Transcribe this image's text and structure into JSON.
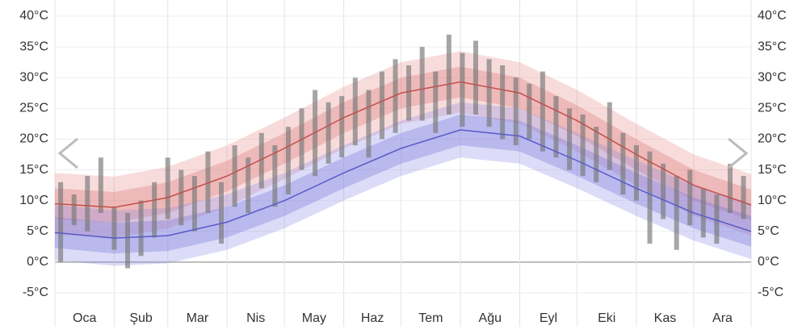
{
  "chart_data": {
    "type": "climate-band",
    "categories": [
      "Oca",
      "Şub",
      "Mar",
      "Nis",
      "May",
      "Haz",
      "Tem",
      "Ağu",
      "Eyl",
      "Eki",
      "Kas",
      "Ara"
    ],
    "xlim": [
      1,
      365
    ],
    "xticks": [
      1,
      32,
      60,
      91,
      121,
      152,
      182,
      213,
      244,
      274,
      305,
      335,
      365
    ],
    "ylim": [
      -5,
      40
    ],
    "yticks": [
      {
        "value": -5,
        "label": "-5°C"
      },
      {
        "value": 0,
        "label": "0°C"
      },
      {
        "value": 5,
        "label": "5°C"
      },
      {
        "value": 10,
        "label": "10°C"
      },
      {
        "value": 15,
        "label": "15°C"
      },
      {
        "value": 20,
        "label": "20°C"
      },
      {
        "value": 25,
        "label": "25°C"
      },
      {
        "value": 30,
        "label": "30°C"
      },
      {
        "value": 35,
        "label": "35°C"
      },
      {
        "value": 40,
        "label": "40°C"
      }
    ],
    "y2lim": [
      -5,
      40
    ],
    "y2ticks": [
      {
        "value": -5,
        "label": "-5°C"
      },
      {
        "value": 0,
        "label": "0°C"
      },
      {
        "value": 5,
        "label": "5°C"
      },
      {
        "value": 10,
        "label": "10°C"
      },
      {
        "value": 15,
        "label": "15°C"
      },
      {
        "value": 20,
        "label": "20°C"
      },
      {
        "value": 25,
        "label": "25°C"
      },
      {
        "value": 30,
        "label": "30°C"
      },
      {
        "value": 35,
        "label": "35°C"
      },
      {
        "value": 40,
        "label": "40°C"
      }
    ],
    "grid": true,
    "x": [
      1,
      32,
      60,
      91,
      121,
      152,
      182,
      213,
      244,
      274,
      305,
      335,
      365
    ],
    "bands": [
      {
        "color": "#e88a8a",
        "opacity": 0.3,
        "upper": [
          14.5,
          13.9,
          15.5,
          19,
          23.5,
          28.5,
          32.5,
          34.3,
          32.5,
          28,
          22.5,
          17.5,
          14.3
        ],
        "lower": [
          4.5,
          3.9,
          5.5,
          9,
          13.5,
          18.5,
          22.5,
          24.3,
          22.5,
          18,
          12.5,
          7.5,
          4.3
        ]
      },
      {
        "color": "#d86a6a",
        "opacity": 0.3,
        "upper": [
          12,
          11.4,
          13,
          16.5,
          21,
          26,
          30,
          31.8,
          30,
          25.5,
          20,
          15,
          11.8
        ],
        "lower": [
          7,
          6.4,
          8,
          11.5,
          16,
          21,
          25,
          26.8,
          25,
          20.5,
          15,
          10,
          6.8
        ]
      },
      {
        "color": "#8a8ae8",
        "opacity": 0.3,
        "upper": [
          9.3,
          8.4,
          8.8,
          11,
          14.5,
          19,
          23,
          26,
          25,
          21,
          16.5,
          12.5,
          9.5
        ],
        "lower": [
          0.3,
          -0.6,
          -0.2,
          2,
          5.5,
          10,
          14,
          17,
          16,
          12,
          7.5,
          3.5,
          0.5
        ]
      },
      {
        "color": "#6a6ad8",
        "opacity": 0.3,
        "upper": [
          7.3,
          6.4,
          6.8,
          9,
          12.5,
          17,
          21,
          24,
          23,
          19,
          14.5,
          10.5,
          7.5
        ],
        "lower": [
          2.3,
          1.4,
          1.8,
          4,
          7.5,
          12,
          16,
          19,
          18,
          14,
          9.5,
          5.5,
          2.5
        ]
      }
    ],
    "series": [
      {
        "color": "#c0504d",
        "values": [
          9.5,
          8.9,
          10.5,
          14,
          18.5,
          23.5,
          27.5,
          29.3,
          27.5,
          23,
          17.5,
          12.5,
          9.3
        ]
      },
      {
        "color": "#5a5ac8",
        "values": [
          4.8,
          3.9,
          4.3,
          6.5,
          10,
          14.5,
          18.5,
          21.5,
          20.5,
          16.5,
          12,
          8,
          5
        ]
      }
    ],
    "observed": {
      "color": "#777777",
      "x": [
        4,
        11,
        18,
        25,
        32,
        39,
        46,
        53,
        60,
        67,
        74,
        81,
        88,
        95,
        102,
        109,
        116,
        123,
        130,
        137,
        144,
        151,
        158,
        165,
        172,
        179,
        186,
        193,
        200,
        207,
        214,
        221,
        228,
        235,
        242,
        249,
        256,
        263,
        270,
        277,
        284,
        291,
        298,
        305,
        312,
        319,
        326,
        333,
        340,
        347,
        354,
        361
      ],
      "low": [
        0,
        6,
        5,
        8,
        2,
        -1,
        1,
        4,
        7,
        6,
        5,
        8,
        3,
        9,
        8,
        12,
        9,
        11,
        15,
        14,
        16,
        17,
        19,
        17,
        20,
        21,
        23,
        23,
        21,
        24,
        22,
        24,
        22,
        20,
        19,
        20,
        18,
        17,
        15,
        14,
        13,
        15,
        11,
        10,
        3,
        7,
        2,
        6,
        4,
        3,
        8,
        7
      ],
      "high": [
        13,
        11,
        14,
        17,
        9,
        8,
        10,
        13,
        17,
        15,
        14,
        18,
        13,
        19,
        17,
        21,
        19,
        22,
        25,
        28,
        26,
        27,
        30,
        28,
        31,
        33,
        32,
        35,
        31,
        37,
        34,
        36,
        33,
        32,
        30,
        29,
        31,
        27,
        25,
        24,
        22,
        26,
        21,
        19,
        18,
        16,
        14,
        15,
        12,
        11,
        16,
        14
      ]
    }
  }
}
